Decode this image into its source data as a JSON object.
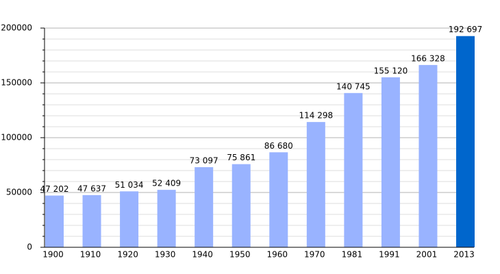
{
  "chart_data": {
    "type": "bar",
    "categories": [
      "1900",
      "1910",
      "1920",
      "1930",
      "1940",
      "1950",
      "1960",
      "1970",
      "1981",
      "1991",
      "2001",
      "2013"
    ],
    "values": [
      47202,
      47637,
      51034,
      52409,
      73097,
      75861,
      86680,
      114298,
      140745,
      155120,
      166328,
      192697
    ],
    "value_labels": [
      "47 202",
      "47 637",
      "51 034",
      "52 409",
      "73 097",
      "75 861",
      "86 680",
      "114 298",
      "140 745",
      "155 120",
      "166 328",
      "192 697"
    ],
    "colors": [
      "#99b3ff",
      "#99b3ff",
      "#99b3ff",
      "#99b3ff",
      "#99b3ff",
      "#99b3ff",
      "#99b3ff",
      "#99b3ff",
      "#99b3ff",
      "#99b3ff",
      "#99b3ff",
      "#0066cc"
    ],
    "ylim": [
      0,
      200000
    ],
    "yticks": [
      0,
      50000,
      100000,
      150000,
      200000
    ],
    "minor_yticks": [
      10000,
      20000,
      30000,
      40000,
      60000,
      70000,
      80000,
      90000,
      110000,
      120000,
      130000,
      140000,
      160000,
      170000,
      180000,
      190000
    ],
    "grid": true
  }
}
